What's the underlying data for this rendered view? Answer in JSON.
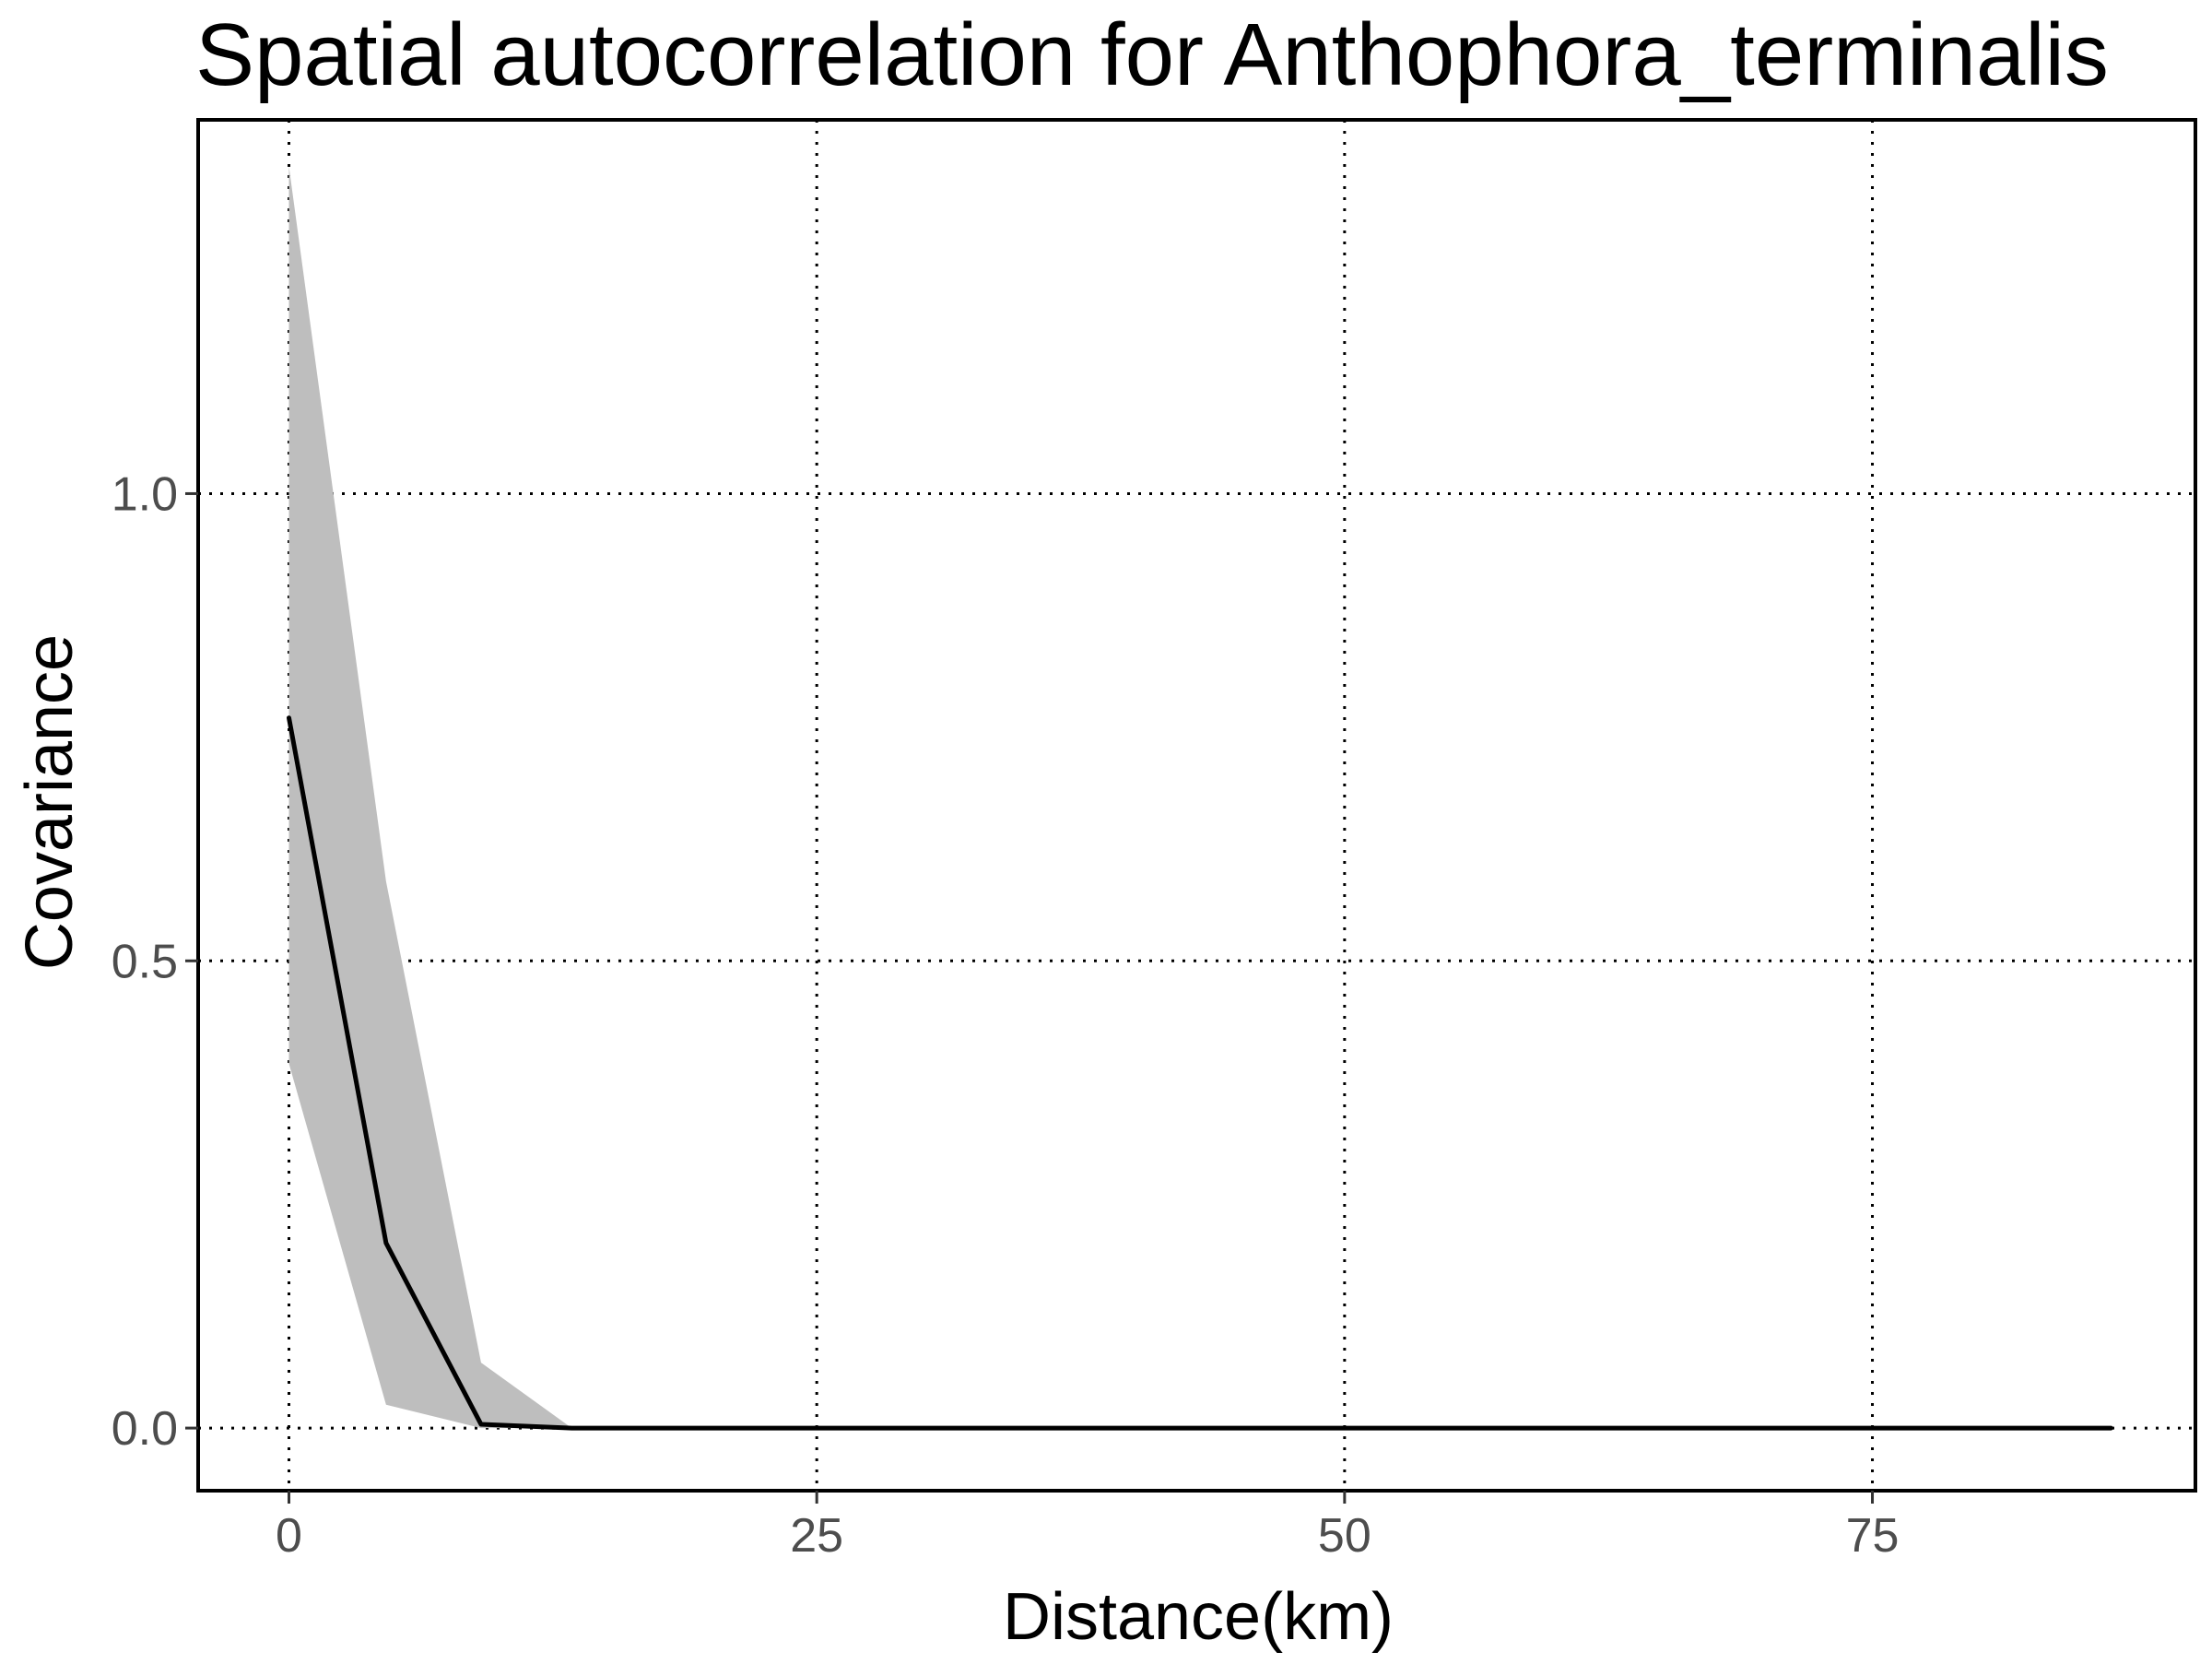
{
  "chart_data": {
    "type": "area",
    "title": "Spatial autocorrelation for Anthophora_terminalis",
    "xlabel": "Distance(km)",
    "ylabel": "Covariance",
    "xlim": [
      -4.3,
      90.3
    ],
    "ylim": [
      -0.067,
      1.4
    ],
    "x_ticks": [
      0,
      25,
      50,
      75
    ],
    "y_ticks": [
      0.0,
      0.5,
      1.0
    ],
    "x_tick_labels": [
      "0",
      "25",
      "50",
      "75"
    ],
    "y_tick_labels": [
      "0.0",
      "0.5",
      "1.0"
    ],
    "grid": "dotted, major ticks",
    "legend": "none",
    "series": [
      {
        "kind": "ribbon",
        "x": [
          0,
          4.6,
          9.1,
          13.4,
          86.3
        ],
        "lower": [
          0.39,
          0.025,
          0.0,
          0.0,
          0.0
        ],
        "upper": [
          1.35,
          0.585,
          0.07,
          0.0,
          0.0
        ],
        "color": "#bebebe"
      },
      {
        "kind": "line",
        "x": [
          0,
          4.6,
          9.1,
          13.4,
          86.3
        ],
        "y": [
          0.76,
          0.198,
          0.004,
          0.0,
          0.0
        ],
        "color": "#000000"
      }
    ]
  }
}
